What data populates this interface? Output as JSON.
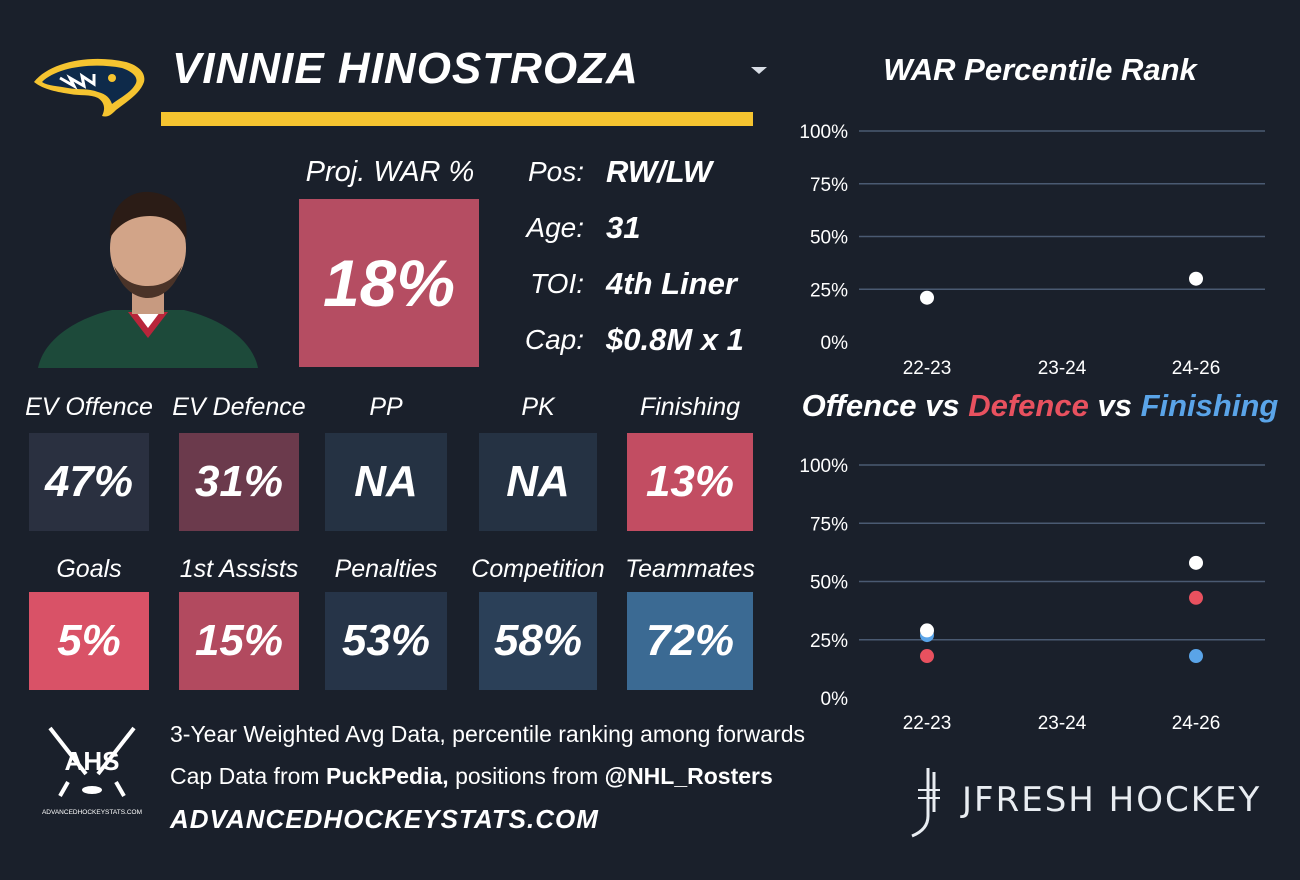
{
  "header": {
    "player_name": "VINNIE HINOSTROZA",
    "team_logo_icon": "predator-logo-icon",
    "accent_color": "#f5c430"
  },
  "projection": {
    "label": "Proj. WAR %",
    "value": "18%",
    "color": "#b54d62"
  },
  "info": [
    {
      "label": "Pos:",
      "value": "RW/LW"
    },
    {
      "label": "Age:",
      "value": "31"
    },
    {
      "label": "TOI:",
      "value": "4th Liner"
    },
    {
      "label": "Cap:",
      "value": "$0.8M x 1"
    }
  ],
  "stats_row1": [
    {
      "label": "EV Offence",
      "value": "47%",
      "color": "#2a3040"
    },
    {
      "label": "EV Defence",
      "value": "31%",
      "color": "#6b3a4c"
    },
    {
      "label": "PP",
      "value": "NA",
      "color": "#253243"
    },
    {
      "label": "PK",
      "value": "NA",
      "color": "#253243"
    },
    {
      "label": "Finishing",
      "value": "13%",
      "color": "#c24d62"
    }
  ],
  "stats_row2": [
    {
      "label": "Goals",
      "value": "5%",
      "color": "#d95267"
    },
    {
      "label": "1st Assists",
      "value": "15%",
      "color": "#b24a5f"
    },
    {
      "label": "Penalties",
      "value": "53%",
      "color": "#263448"
    },
    {
      "label": "Competition",
      "value": "58%",
      "color": "#2b4058"
    },
    {
      "label": "Teammates",
      "value": "72%",
      "color": "#3b6a93"
    }
  ],
  "footer": {
    "note1": "3-Year Weighted Avg Data, percentile ranking among forwards",
    "note2_prefix": "Cap Data from ",
    "note2_source": "PuckPedia,",
    "note2_middle": " positions from ",
    "note2_handle": "@NHL_Rosters",
    "site": "ADVANCEDHOCKEYSTATS.COM",
    "ahs_logo_text": "AHS",
    "ahs_logo_subtext": "ADVANCEDHOCKEYSTATS.COM",
    "brand": "JFRESH HOCKEY"
  },
  "chart_data": [
    {
      "type": "scatter",
      "title": "WAR Percentile Rank",
      "categories": [
        "22-23",
        "23-24",
        "24-26"
      ],
      "yticks": [
        "0%",
        "25%",
        "50%",
        "75%",
        "100%"
      ],
      "ylim": [
        0,
        100
      ],
      "grid": true,
      "series": [
        {
          "color": "#ffffff",
          "values": [
            21,
            null,
            30
          ]
        }
      ]
    },
    {
      "type": "scatter",
      "title_parts": [
        {
          "text": "Offence",
          "color": "#ffffff"
        },
        {
          "text": " vs ",
          "color": "#ffffff"
        },
        {
          "text": "Defence",
          "color": "#e8515f"
        },
        {
          "text": " vs ",
          "color": "#ffffff"
        },
        {
          "text": "Finishing",
          "color": "#5aa4e8"
        }
      ],
      "categories": [
        "22-23",
        "23-24",
        "24-26"
      ],
      "yticks": [
        "0%",
        "25%",
        "50%",
        "75%",
        "100%"
      ],
      "ylim": [
        0,
        100
      ],
      "grid": true,
      "series": [
        {
          "name": "Finishing",
          "color": "#5aa4e8",
          "values": [
            27,
            null,
            18
          ]
        },
        {
          "name": "Defence",
          "color": "#e8515f",
          "values": [
            18,
            null,
            43
          ]
        },
        {
          "name": "Offence",
          "color": "#ffffff",
          "values": [
            29,
            null,
            58
          ]
        }
      ]
    }
  ]
}
